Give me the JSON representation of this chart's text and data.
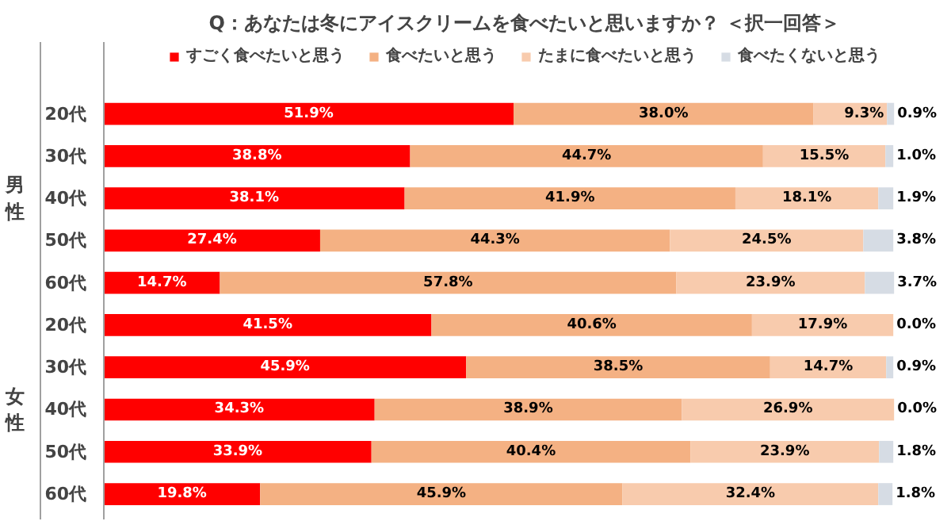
{
  "chart_data": {
    "type": "bar",
    "orientation": "horizontal",
    "stacked": true,
    "title": "Q：あなたは冬にアイスクリームを食べたいと思いますか？ ＜択一回答＞",
    "categories": [
      "20代",
      "30代",
      "40代",
      "50代",
      "60代",
      "20代",
      "30代",
      "40代",
      "50代",
      "60代"
    ],
    "series": [
      {
        "name": "すごく食べたいと思う",
        "color": "#ff0000",
        "values": [
          51.9,
          38.8,
          38.1,
          27.4,
          14.7,
          41.5,
          45.9,
          34.3,
          33.9,
          19.8
        ],
        "value_labels": [
          "51.9%",
          "38.8%",
          "38.1%",
          "27.4%",
          "14.7%",
          "41.5%",
          "45.9%",
          "34.3%",
          "33.9%",
          "19.8%"
        ]
      },
      {
        "name": "食べたいと思う",
        "color": "#f4b183",
        "values": [
          38.0,
          44.7,
          41.9,
          44.3,
          57.8,
          40.6,
          38.5,
          38.9,
          40.4,
          45.9
        ],
        "value_labels": [
          "38.0%",
          "44.7%",
          "41.9%",
          "44.3%",
          "57.8%",
          "40.6%",
          "38.5%",
          "38.9%",
          "40.4%",
          "45.9%"
        ]
      },
      {
        "name": "たまに食べたいと思う",
        "color": "#f8cbad",
        "values": [
          9.3,
          15.5,
          18.1,
          24.5,
          23.9,
          17.9,
          14.7,
          26.9,
          23.9,
          32.4
        ],
        "value_labels": [
          "9.3%",
          "15.5%",
          "18.1%",
          "24.5%",
          "23.9%",
          "17.9%",
          "14.7%",
          "26.9%",
          "23.9%",
          "32.4%"
        ]
      },
      {
        "name": "食べたくないと思う",
        "color": "#d6dce4",
        "values": [
          0.9,
          1.0,
          1.9,
          3.8,
          3.7,
          0.0,
          0.9,
          0.0,
          1.8,
          1.8
        ],
        "value_labels": [
          "0.9%",
          "1.0%",
          "1.9%",
          "3.8%",
          "3.7%",
          "0.0%",
          "0.9%",
          "0.0%",
          "1.8%",
          "1.8%"
        ]
      }
    ],
    "tick_labels": "y",
    "legend": "top",
    "grid": false,
    "annotations": [
      "男性",
      "女性"
    ]
  }
}
